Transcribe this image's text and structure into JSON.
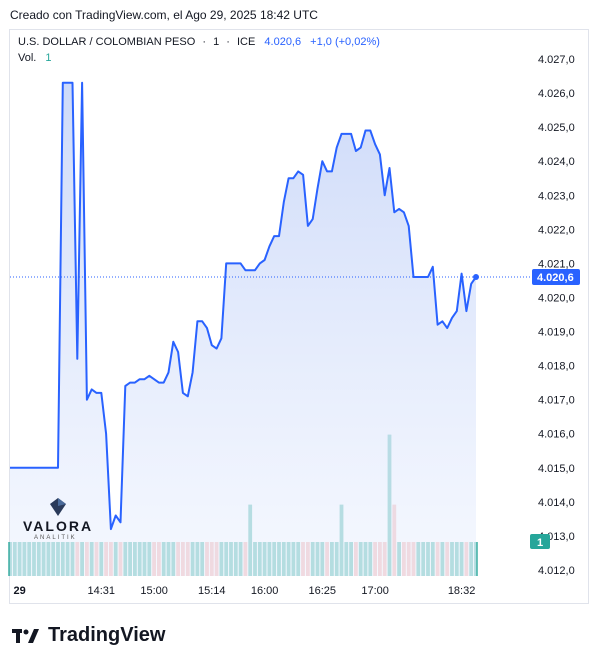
{
  "header": {
    "created_text": "Creado con TradingView.com, el Ago 29, 2025 18:42 UTC"
  },
  "legend": {
    "symbol": "U.S. DOLLAR / COLOMBIAN PESO",
    "interval": "1",
    "exchange": "ICE",
    "last": "4.020,6",
    "change": "+1,0 (+0,02%)",
    "vol_label": "Vol.",
    "vol_value": "1"
  },
  "footer": {
    "brand": "TradingView"
  },
  "watermark": {
    "name": "VALORA",
    "sub": "ANALITIK"
  },
  "colors": {
    "line": "#2962ff",
    "fill_top": "#c8d6f8",
    "vol_up": "#26a69a",
    "vol_down": "#ef9a9a",
    "price_label_bg": "#2962ff",
    "vol_label_bg": "#26a69a"
  },
  "chart_data": {
    "type": "area",
    "ylim": [
      4011.8,
      4027.4
    ],
    "y_ticks": [
      "4.027,0",
      "4.026,0",
      "4.025,0",
      "4.024,0",
      "4.023,0",
      "4.022,0",
      "4.021,0",
      "4.020,0",
      "4.019,0",
      "4.018,0",
      "4.017,0",
      "4.016,0",
      "4.015,0",
      "4.014,0",
      "4.013,0",
      "4.012,0"
    ],
    "y_tick_values": [
      4027,
      4026,
      4025,
      4024,
      4023,
      4022,
      4021,
      4020,
      4019,
      4018,
      4017,
      4016,
      4015,
      4014,
      4013,
      4012
    ],
    "x_ticks": [
      "29",
      "14:31",
      "15:00",
      "15:14",
      "16:00",
      "16:25",
      "17:00",
      "18:32"
    ],
    "x_tick_index": [
      2,
      19,
      30,
      42,
      53,
      65,
      76,
      94
    ],
    "last_price_label": "4.020,6",
    "last_price_value": 4020.6,
    "volume_label": "1",
    "values": [
      4015.0,
      4015.0,
      4015.0,
      4015.0,
      4015.0,
      4015.0,
      4015.0,
      4015.0,
      4015.0,
      4015.0,
      4015.0,
      4026.3,
      4026.3,
      4026.3,
      4018.2,
      4026.3,
      4017.0,
      4017.3,
      4017.2,
      4017.2,
      4016.0,
      4013.2,
      4013.6,
      4013.4,
      4017.4,
      4017.5,
      4017.5,
      4017.6,
      4017.6,
      4017.7,
      4017.6,
      4017.5,
      4017.5,
      4017.8,
      4018.7,
      4018.4,
      4017.2,
      4017.1,
      4017.8,
      4019.3,
      4019.3,
      4019.1,
      4018.6,
      4018.5,
      4018.8,
      4021.0,
      4021.0,
      4021.0,
      4021.0,
      4020.8,
      4020.8,
      4020.8,
      4021.0,
      4021.1,
      4021.5,
      4021.8,
      4021.8,
      4022.8,
      4023.5,
      4023.5,
      4023.7,
      4023.6,
      4022.1,
      4022.3,
      4023.2,
      4024.0,
      4023.7,
      4023.7,
      4024.4,
      4024.8,
      4024.8,
      4024.8,
      4024.3,
      4024.4,
      4024.9,
      4024.9,
      4024.5,
      4024.2,
      4023.0,
      4023.8,
      4022.5,
      4022.6,
      4022.5,
      4022.1,
      4020.6,
      4020.6,
      4020.6,
      4020.6,
      4020.9,
      4019.2,
      4019.3,
      4019.1,
      4019.4,
      4019.6,
      4020.7,
      4019.6,
      4020.4,
      4020.6
    ],
    "volume_spikes": [
      [
        50,
        0.55
      ],
      [
        69,
        0.55
      ],
      [
        79,
        1.58
      ],
      [
        80,
        0.55
      ]
    ]
  }
}
